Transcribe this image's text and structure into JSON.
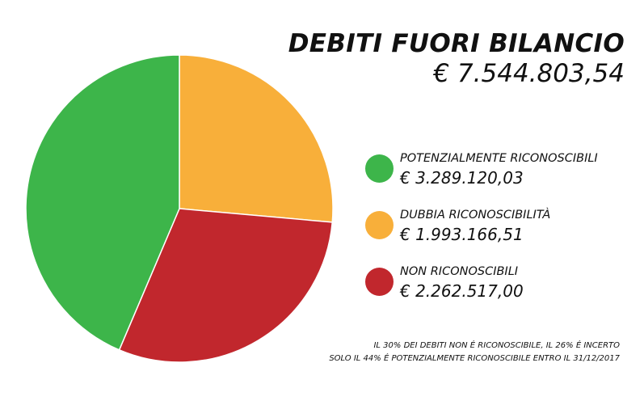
{
  "title": {
    "main": "DEBITI FUORI BILANCIO",
    "total": "€ 7.544.803,54"
  },
  "chart_data": {
    "type": "pie",
    "title": "DEBITI FUORI BILANCIO",
    "slices": [
      {
        "label": "DUBBIA RICONOSCIBILITÀ",
        "value": 1993166.51,
        "color": "#F8AF3A"
      },
      {
        "label": "NON RICONOSCIBILI",
        "value": 2262517.0,
        "color": "#C1272D"
      },
      {
        "label": "POTENZIALMENTE RICONOSCIBILI",
        "value": 3289120.03,
        "color": "#3DB54A"
      }
    ],
    "start_angle_deg": 0,
    "legend": "right"
  },
  "legend": [
    {
      "name": "POTENZIALMENTE RICONOSCIBILI",
      "value": "€ 3.289.120,03",
      "color": "#3DB54A"
    },
    {
      "name": "DUBBIA RICONOSCIBILITÀ",
      "value": "€ 1.993.166,51",
      "color": "#F8AF3A"
    },
    {
      "name": "NON RICONOSCIBILI",
      "value": "€ 2.262.517,00",
      "color": "#C1272D"
    }
  ],
  "footnote": {
    "line1": "IL 30% DEI DEBITI NON É RICONOSCIBILE, IL 26% É INCERTO",
    "line2": "SOLO IL 44% É POTENZIALMENTE RICONOSCIBILE ENTRO IL 31/12/2017"
  }
}
